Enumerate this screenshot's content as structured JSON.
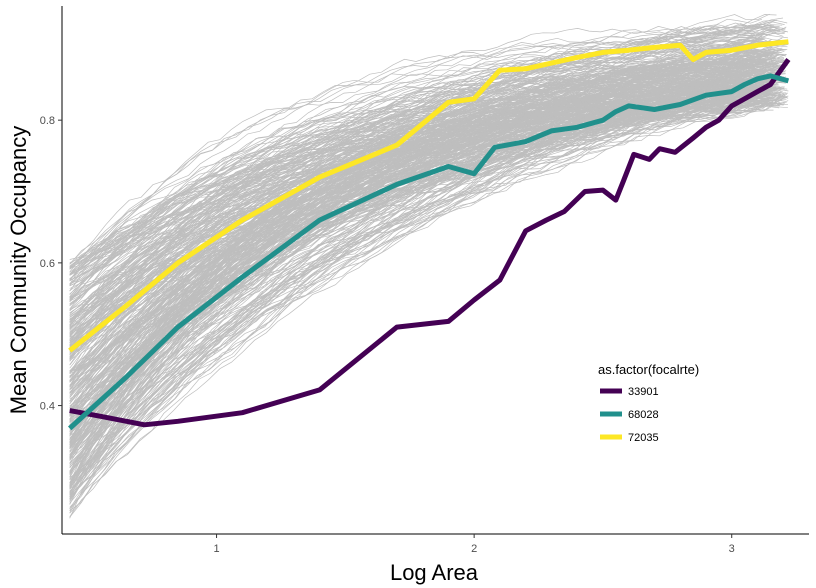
{
  "chart_data": {
    "type": "line",
    "xlabel": "Log Area",
    "ylabel": "Mean Community Occupancy",
    "xlim": [
      0.4,
      3.3
    ],
    "ylim": [
      0.22,
      0.96
    ],
    "x_ticks": [
      1,
      2,
      3
    ],
    "x_tick_labels": [
      "1",
      "2",
      "3"
    ],
    "y_ticks": [
      0.4,
      0.6,
      0.8
    ],
    "y_tick_labels": [
      "0.4",
      "0.6",
      "0.8"
    ],
    "grid": false,
    "legend": {
      "title": "as.factor(focalrte)",
      "placement": "inside-lower-right"
    },
    "background_series": {
      "color": "#bebebe",
      "description_count": 400,
      "x_start": 0.43,
      "x_end": 3.22,
      "y_start_range": [
        0.24,
        0.6
      ],
      "y_end_range": [
        0.78,
        0.95
      ]
    },
    "series": [
      {
        "name": "33901",
        "color": "#440154",
        "x": [
          0.43,
          0.55,
          0.72,
          0.85,
          1.1,
          1.4,
          1.7,
          1.9,
          2.0,
          2.1,
          2.2,
          2.28,
          2.35,
          2.43,
          2.5,
          2.55,
          2.58,
          2.62,
          2.68,
          2.72,
          2.78,
          2.85,
          2.9,
          2.95,
          3.0,
          3.05,
          3.1,
          3.15,
          3.22
        ],
        "y": [
          0.393,
          0.385,
          0.373,
          0.378,
          0.39,
          0.422,
          0.51,
          0.518,
          0.548,
          0.576,
          0.645,
          0.66,
          0.672,
          0.7,
          0.702,
          0.688,
          0.715,
          0.752,
          0.745,
          0.76,
          0.755,
          0.775,
          0.79,
          0.8,
          0.82,
          0.83,
          0.84,
          0.85,
          0.885
        ]
      },
      {
        "name": "68028",
        "color": "#21908c",
        "x": [
          0.43,
          0.65,
          0.85,
          1.1,
          1.4,
          1.7,
          1.9,
          2.0,
          2.08,
          2.2,
          2.3,
          2.4,
          2.5,
          2.55,
          2.6,
          2.7,
          2.8,
          2.9,
          3.0,
          3.05,
          3.1,
          3.15,
          3.22
        ],
        "y": [
          0.368,
          0.44,
          0.51,
          0.58,
          0.66,
          0.71,
          0.735,
          0.725,
          0.762,
          0.77,
          0.785,
          0.79,
          0.8,
          0.812,
          0.82,
          0.815,
          0.822,
          0.835,
          0.84,
          0.85,
          0.858,
          0.862,
          0.855
        ]
      },
      {
        "name": "72035",
        "color": "#fde725",
        "x": [
          0.43,
          0.65,
          0.85,
          1.1,
          1.4,
          1.7,
          1.9,
          2.0,
          2.1,
          2.2,
          2.3,
          2.4,
          2.5,
          2.6,
          2.7,
          2.8,
          2.85,
          2.9,
          3.0,
          3.1,
          3.22
        ],
        "y": [
          0.477,
          0.54,
          0.6,
          0.66,
          0.72,
          0.765,
          0.825,
          0.83,
          0.87,
          0.872,
          0.88,
          0.888,
          0.895,
          0.898,
          0.902,
          0.905,
          0.885,
          0.895,
          0.898,
          0.905,
          0.91
        ]
      }
    ]
  }
}
